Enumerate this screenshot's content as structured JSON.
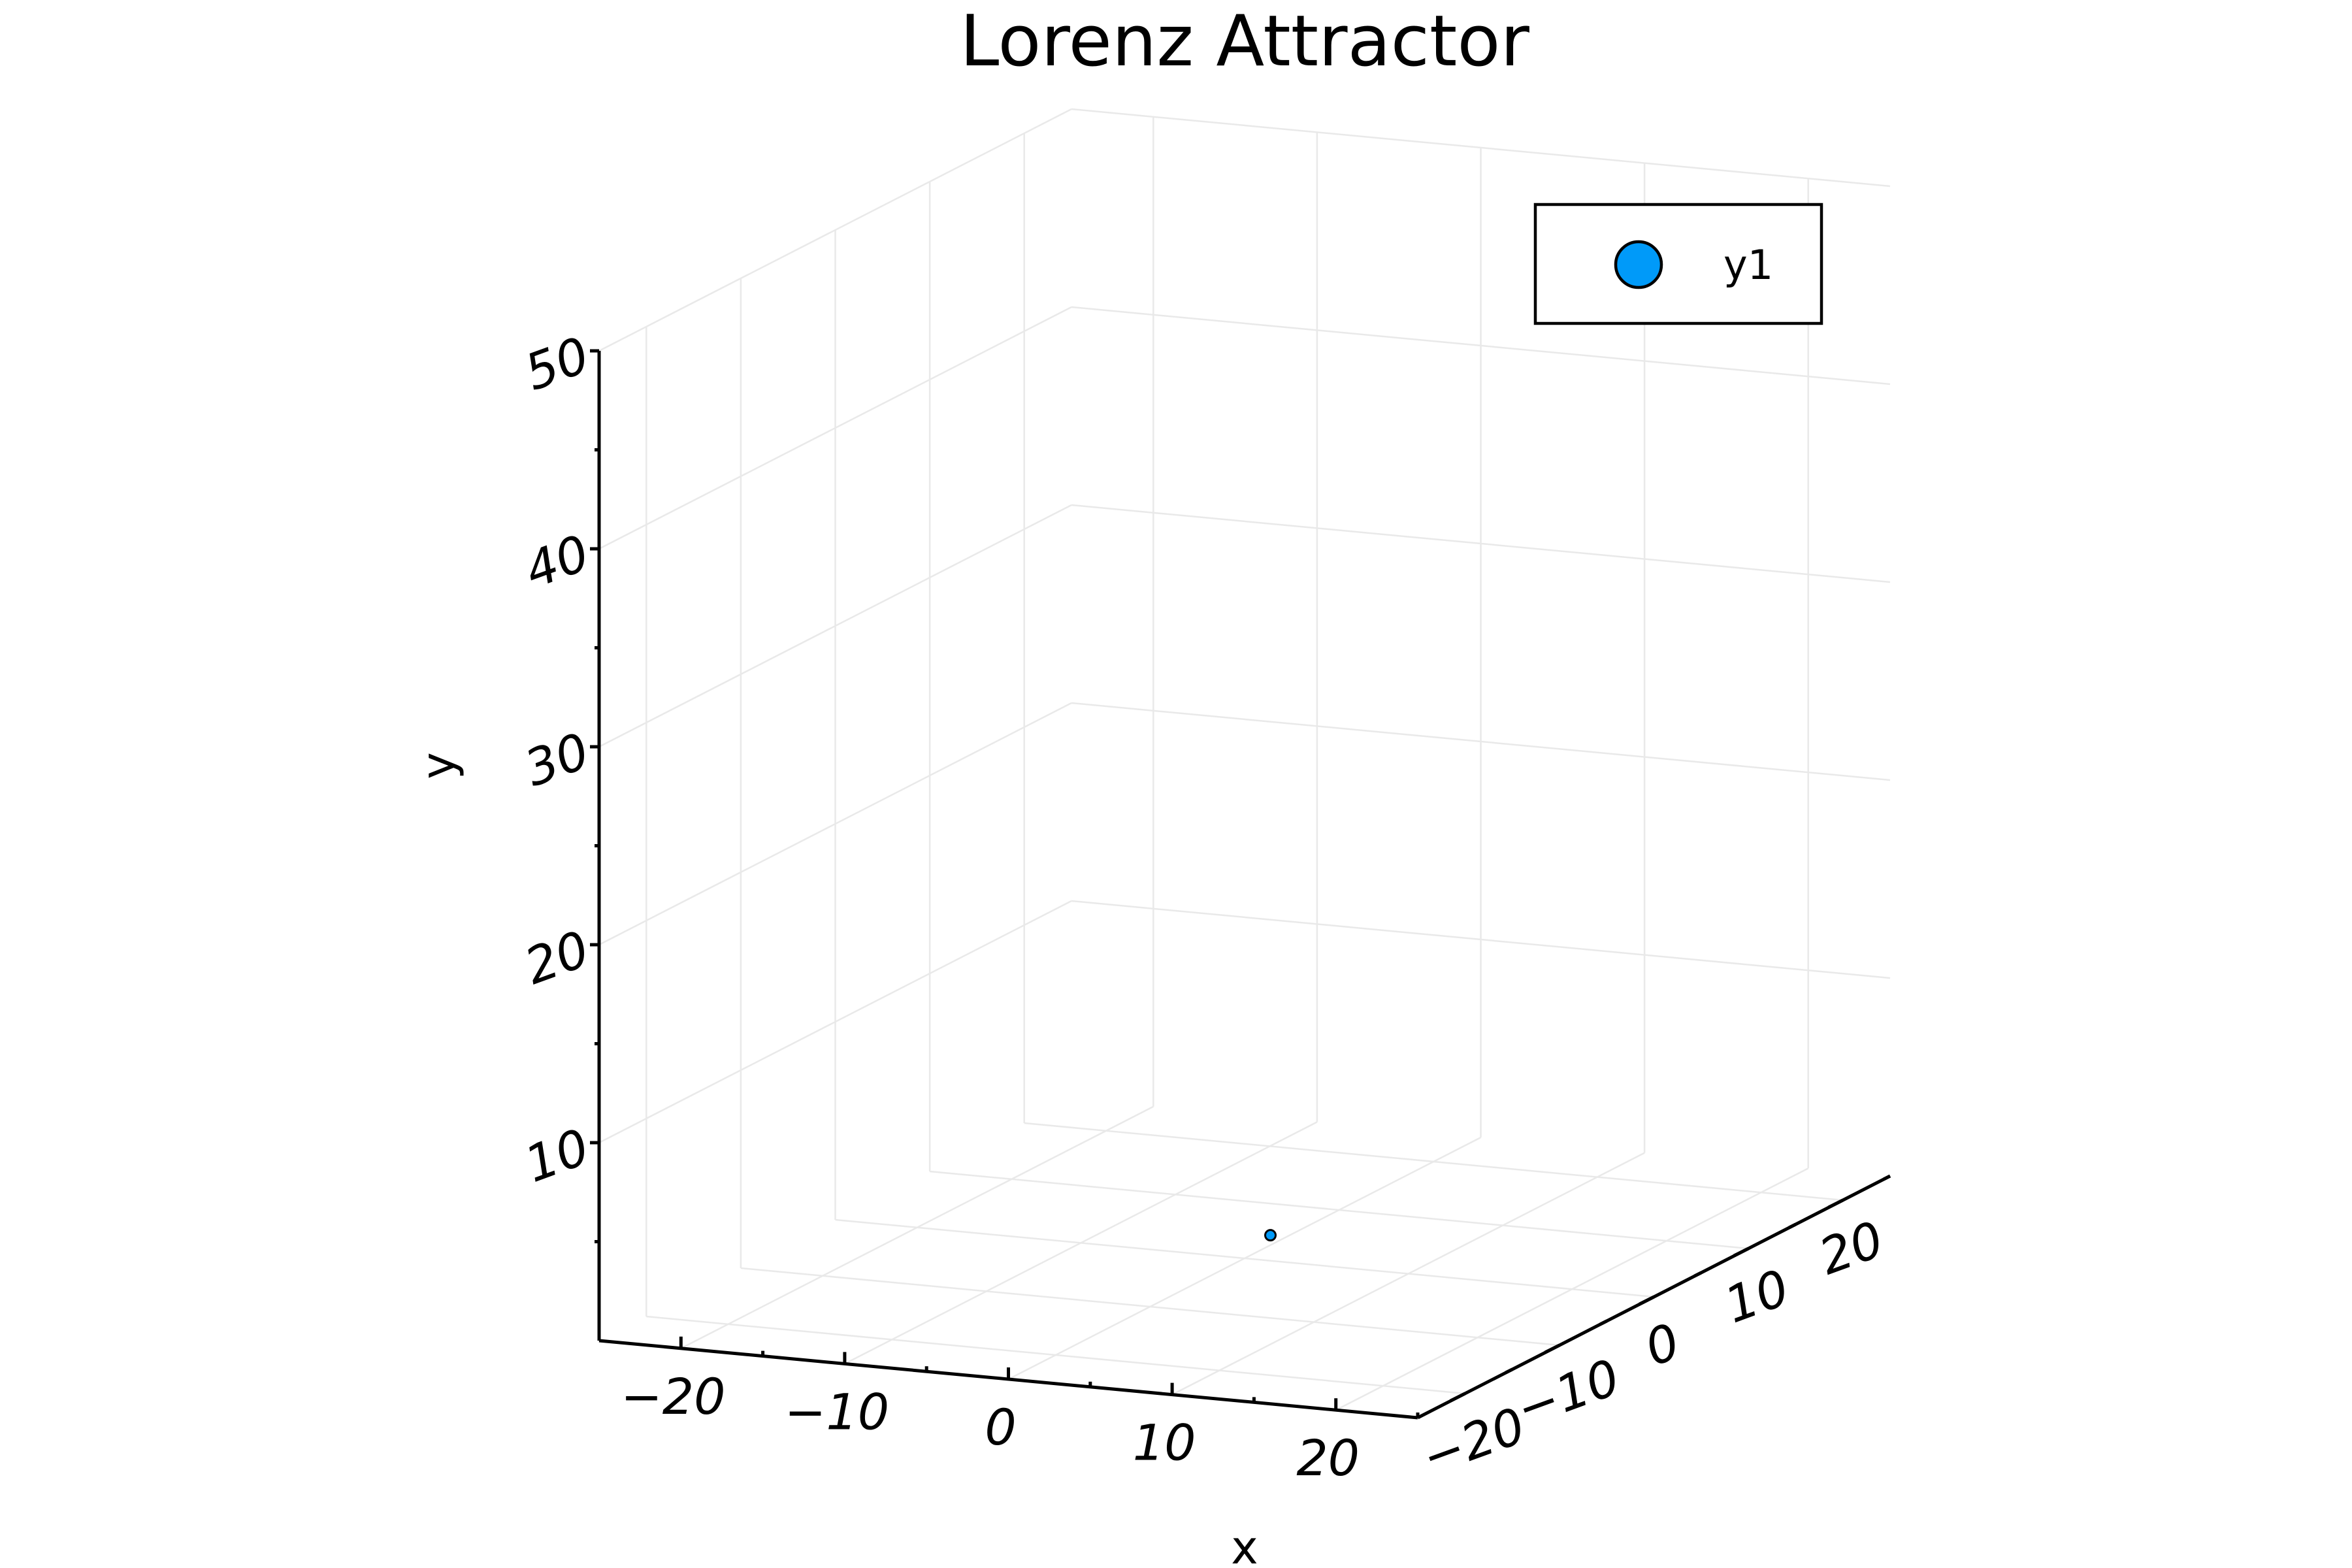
{
  "chart_data": {
    "type": "scatter",
    "title": "Lorenz Attractor",
    "xlabel": "x",
    "ylabel": "y",
    "zlabel": "",
    "xlim": [
      -25,
      25
    ],
    "ylim": [
      -25,
      25
    ],
    "zlim": [
      0,
      50
    ],
    "x_ticks": [
      -20,
      -10,
      0,
      10,
      20
    ],
    "y_ticks": [
      -20,
      -10,
      0,
      10,
      20
    ],
    "z_ticks": [
      10,
      20,
      30,
      40,
      50
    ],
    "x_tick_labels": [
      "−20",
      "−10",
      "0",
      "10",
      "20"
    ],
    "y_tick_labels": [
      "−20",
      "−10",
      "0",
      "10",
      "20"
    ],
    "z_tick_labels": [
      "10",
      "20",
      "30",
      "40",
      "50"
    ],
    "series": [
      {
        "name": "y1",
        "color": "#009af9",
        "points": [
          {
            "x": 1,
            "y": 1,
            "z": 1
          }
        ]
      }
    ],
    "legend": {
      "position": "top-right",
      "entries": [
        "y1"
      ]
    },
    "grid": true
  }
}
